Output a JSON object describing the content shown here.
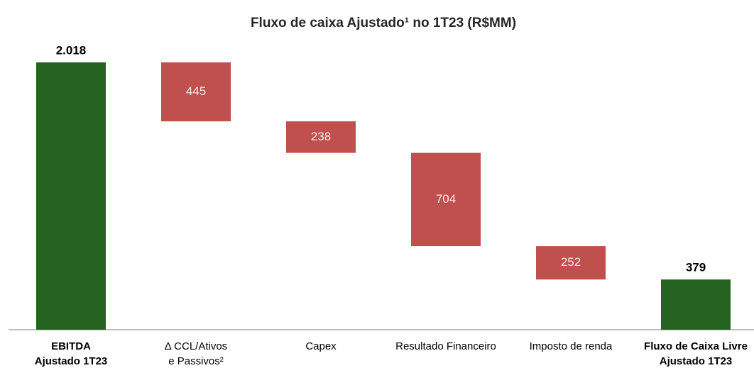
{
  "chart_data": {
    "type": "waterfall",
    "title": "Fluxo de caixa Ajustado¹ no 1T23 (R$MM)",
    "categories": [
      [
        "EBITDA",
        "Ajustado 1T23"
      ],
      [
        "Δ  CCL/Ativos",
        "e Passivos²"
      ],
      [
        "Capex"
      ],
      [
        "Resultado Financeiro"
      ],
      [
        "Imposto de renda"
      ],
      [
        "Fluxo de Caixa Livre",
        "Ajustado 1T23"
      ]
    ],
    "values": [
      2018,
      445,
      238,
      704,
      252,
      379
    ],
    "value_labels": [
      "2.018",
      "445",
      "238",
      "704",
      "252",
      "379"
    ],
    "measures": [
      "total",
      "decrease",
      "decrease",
      "decrease",
      "decrease",
      "total"
    ],
    "colors": [
      "#256321",
      "#c0504d",
      "#c0504d",
      "#c0504d",
      "#c0504d",
      "#256321"
    ]
  }
}
